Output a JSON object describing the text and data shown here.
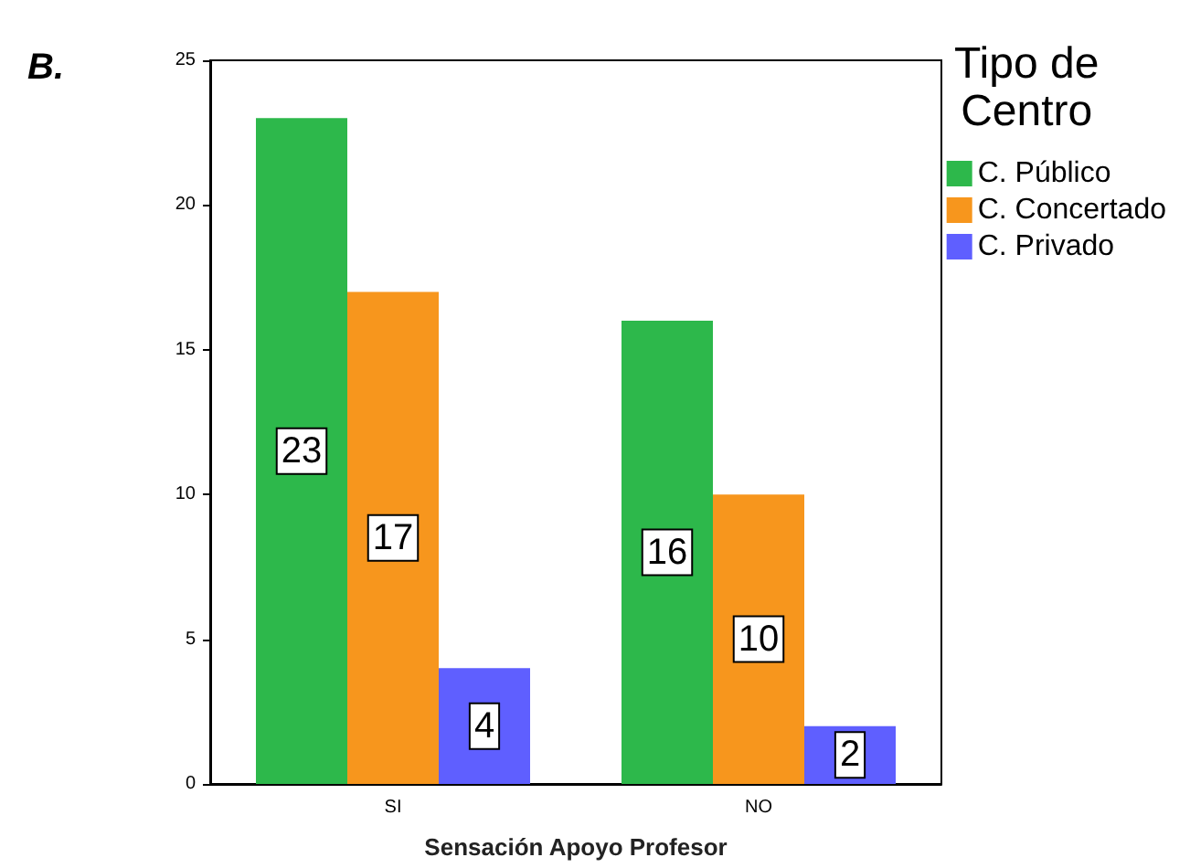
{
  "chart_data": {
    "type": "bar",
    "title": "B.",
    "xlabel": "Sensación Apoyo Profesor",
    "legend_title": "Tipo de\nCentro",
    "categories": [
      "SI",
      "NO"
    ],
    "series": [
      {
        "name": "C. Público",
        "color": "#2db84b",
        "values": [
          23,
          16
        ]
      },
      {
        "name": "C. Concertado",
        "color": "#f7961d",
        "values": [
          17,
          10
        ]
      },
      {
        "name": "C. Privado",
        "color": "#5f5fff",
        "values": [
          4,
          2
        ]
      }
    ],
    "ylim": [
      0,
      25
    ],
    "yticks": [
      0,
      5,
      10,
      15,
      20,
      25
    ],
    "data_labels": true,
    "grid": false,
    "legend": "top right"
  }
}
